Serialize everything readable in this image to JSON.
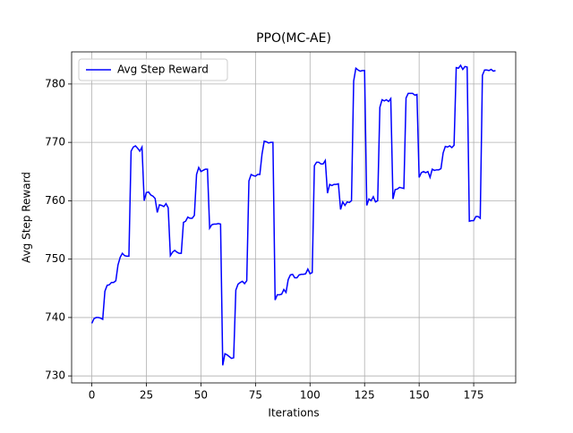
{
  "chart_data": {
    "type": "line",
    "title": "PPO(MC-AE)",
    "x_label": "Iterations",
    "y_label": "Avg Step Reward",
    "x": [
      0,
      1,
      2,
      3,
      4,
      5,
      6,
      7,
      8,
      9,
      10,
      11,
      12,
      13,
      14,
      15,
      16,
      17,
      18,
      19,
      20,
      21,
      22,
      23,
      24,
      25,
      26,
      27,
      28,
      29,
      30,
      31,
      32,
      33,
      34,
      35,
      36,
      37,
      38,
      39,
      40,
      41,
      42,
      43,
      44,
      45,
      46,
      47,
      48,
      49,
      50,
      51,
      52,
      53,
      54,
      55,
      56,
      57,
      58,
      59,
      60,
      61,
      62,
      63,
      64,
      65,
      66,
      67,
      68,
      69,
      70,
      71,
      72,
      73,
      74,
      75,
      76,
      77,
      78,
      79,
      80,
      81,
      82,
      83,
      84,
      85,
      86,
      87,
      88,
      89,
      90,
      91,
      92,
      93,
      94,
      95,
      96,
      97,
      98,
      99,
      100,
      101,
      102,
      103,
      104,
      105,
      106,
      107,
      108,
      109,
      110,
      111,
      112,
      113,
      114,
      115,
      116,
      117,
      118,
      119,
      120,
      121,
      122,
      123,
      124,
      125,
      126,
      127,
      128,
      129,
      130,
      131,
      132,
      133,
      134,
      135,
      136,
      137,
      138,
      139,
      140,
      141,
      142,
      143,
      144,
      145,
      146,
      147,
      148,
      149,
      150,
      151,
      152,
      153,
      154,
      155,
      156,
      157,
      158,
      159,
      160,
      161,
      162,
      163,
      164,
      165,
      166,
      167,
      168,
      169,
      170,
      171,
      172,
      173,
      174,
      175,
      176,
      177,
      178,
      179,
      180,
      181,
      182,
      183,
      184,
      185
    ],
    "series": [
      {
        "name": "Avg Step Reward",
        "color": "#0000ff",
        "values": [
          739,
          739.8,
          740,
          740,
          739.9,
          739.7,
          744.5,
          745.5,
          745.6,
          746,
          746,
          746.3,
          749,
          750.3,
          751,
          750.6,
          750.5,
          750.5,
          768.5,
          769.2,
          769.4,
          769,
          768.5,
          769.2,
          760,
          761.4,
          761.5,
          761,
          760.8,
          760.4,
          758,
          759.3,
          759.2,
          759,
          759.5,
          758.8,
          750.6,
          751.2,
          751.5,
          751.2,
          751,
          751,
          756.3,
          756.5,
          757.2,
          757,
          757,
          757.5,
          764.5,
          765.7,
          765,
          765.2,
          765.4,
          765.4,
          755.3,
          755.9,
          756,
          756,
          756.1,
          756,
          731.8,
          733.8,
          733.6,
          733.3,
          733,
          733.1,
          744.7,
          745.7,
          746,
          746.2,
          745.8,
          746.3,
          763.4,
          764.5,
          764.3,
          764.2,
          764.5,
          764.5,
          768,
          770.2,
          770.1,
          769.9,
          770,
          770,
          743,
          743.9,
          743.9,
          744,
          744.8,
          744.3,
          746.5,
          747.3,
          747.4,
          746.8,
          746.8,
          747.3,
          747.4,
          747.4,
          747.5,
          748.3,
          747.5,
          747.7,
          766,
          766.6,
          766.6,
          766.3,
          766.3,
          766.9,
          761.3,
          762.8,
          762.6,
          762.8,
          762.8,
          762.9,
          758.5,
          759.8,
          759.2,
          759.8,
          759.7,
          760,
          780.5,
          782.7,
          782.4,
          782.2,
          782.3,
          782.3,
          759.2,
          760.3,
          760,
          760.7,
          759.8,
          760,
          776,
          777.3,
          777.1,
          777.3,
          777,
          777.5,
          760.3,
          761.9,
          762,
          762.3,
          762.2,
          762.1,
          777.6,
          778.4,
          778.4,
          778.4,
          778.1,
          778.2,
          764,
          764.8,
          765,
          764.8,
          765,
          764,
          765.4,
          765.2,
          765.3,
          765.3,
          765.5,
          768.2,
          769.3,
          769.2,
          769.4,
          769.1,
          769.5,
          782.8,
          782.7,
          783.2,
          782.5,
          783,
          782.9,
          756.5,
          756.6,
          756.6,
          757.3,
          757.3,
          757,
          781.5,
          782.4,
          782.4,
          782.3,
          782.5,
          782.2,
          782.3
        ]
      }
    ],
    "xlim": [
      -9.25,
      194.25
    ],
    "xticks": [
      0,
      25,
      50,
      75,
      100,
      125,
      150,
      175
    ],
    "ylim": [
      728.8,
      785.5
    ],
    "yticks": [
      730,
      740,
      750,
      760,
      770,
      780
    ],
    "grid": true,
    "legend": "upper left"
  }
}
